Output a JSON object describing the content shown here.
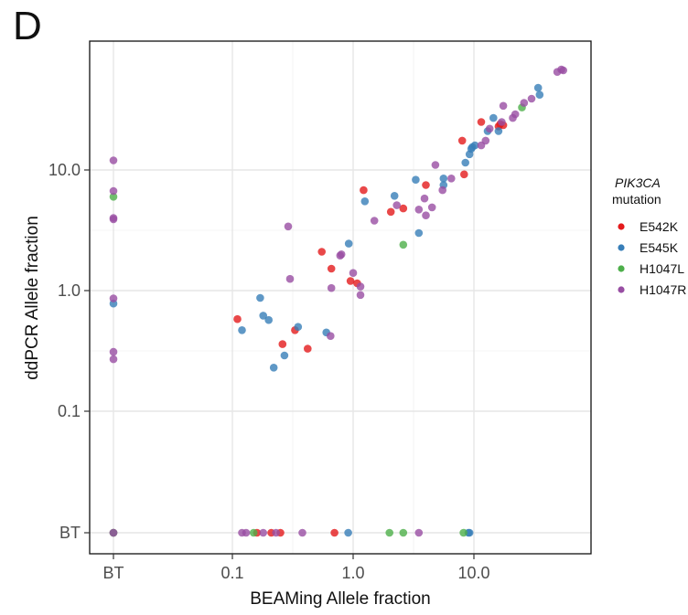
{
  "panel_label": "D",
  "chart_data": {
    "type": "scatter",
    "xlabel": "BEAMing Allele fraction",
    "ylabel": "ddPCR Allele fraction",
    "scale": "log10",
    "below_threshold_label": "BT",
    "x_ticks": [
      "BT",
      "0.1",
      "1.0",
      "10.0"
    ],
    "y_ticks": [
      "BT",
      "0.1",
      "1.0",
      "10.0"
    ],
    "xlim": [
      0.01,
      70
    ],
    "ylim": [
      0.01,
      90
    ],
    "grid": true,
    "legend": {
      "title_italic": "PIK3CA",
      "title": "mutation",
      "position": "right"
    },
    "series": [
      {
        "name": "E542K",
        "color": "#e41a1c",
        "points": [
          [
            "BT",
            "BT"
          ],
          [
            0.16,
            "BT"
          ],
          [
            0.21,
            "BT"
          ],
          [
            0.25,
            "BT"
          ],
          [
            0.7,
            "BT"
          ],
          [
            0.11,
            0.58
          ],
          [
            0.26,
            0.36
          ],
          [
            0.33,
            0.47
          ],
          [
            0.42,
            0.33
          ],
          [
            0.55,
            2.1
          ],
          [
            0.66,
            1.52
          ],
          [
            0.95,
            1.2
          ],
          [
            1.08,
            1.15
          ],
          [
            1.22,
            6.8
          ],
          [
            2.05,
            4.5
          ],
          [
            2.6,
            4.8
          ],
          [
            4.0,
            7.5
          ],
          [
            8.0,
            17.5
          ],
          [
            8.3,
            9.2
          ],
          [
            11.5,
            25.0
          ],
          [
            16.0,
            23.0
          ],
          [
            16.5,
            24.0
          ],
          [
            17.5,
            23.5
          ]
        ]
      },
      {
        "name": "E545K",
        "color": "#377eb8",
        "points": [
          [
            "BT",
            0.78
          ],
          [
            "BT",
            "BT"
          ],
          [
            0.91,
            "BT"
          ],
          [
            9.0,
            "BT"
          ],
          [
            9.2,
            "BT"
          ],
          [
            0.12,
            0.47
          ],
          [
            0.17,
            0.87
          ],
          [
            0.18,
            0.62
          ],
          [
            0.2,
            0.57
          ],
          [
            0.22,
            0.23
          ],
          [
            0.27,
            0.29
          ],
          [
            0.35,
            0.5
          ],
          [
            0.6,
            0.45
          ],
          [
            0.92,
            2.45
          ],
          [
            1.25,
            5.5
          ],
          [
            2.2,
            6.1
          ],
          [
            3.3,
            8.3
          ],
          [
            3.5,
            3.0
          ],
          [
            5.6,
            8.5
          ],
          [
            5.6,
            7.5
          ],
          [
            8.5,
            11.5
          ],
          [
            9.2,
            13.5
          ],
          [
            9.5,
            15.0
          ],
          [
            9.7,
            15.5
          ],
          [
            10.2,
            16.0
          ],
          [
            13.0,
            21.0
          ],
          [
            14.5,
            27.0
          ],
          [
            16.0,
            21.0
          ],
          [
            34.0,
            48.0
          ],
          [
            35.0,
            42.0
          ]
        ]
      },
      {
        "name": "H1047L",
        "color": "#4daf4a",
        "points": [
          [
            "BT",
            6.0
          ],
          [
            "BT",
            "BT"
          ],
          [
            0.15,
            "BT"
          ],
          [
            2.0,
            "BT"
          ],
          [
            2.6,
            "BT"
          ],
          [
            8.2,
            "BT"
          ],
          [
            2.6,
            2.4
          ],
          [
            25.0,
            33.0
          ]
        ]
      },
      {
        "name": "H1047R",
        "color": "#984ea3",
        "points": [
          [
            "BT",
            12.0
          ],
          [
            "BT",
            6.7
          ],
          [
            "BT",
            4.0
          ],
          [
            "BT",
            3.9
          ],
          [
            "BT",
            0.86
          ],
          [
            "BT",
            0.31
          ],
          [
            "BT",
            0.27
          ],
          [
            "BT",
            "BT"
          ],
          [
            0.12,
            "BT"
          ],
          [
            0.13,
            "BT"
          ],
          [
            0.18,
            "BT"
          ],
          [
            0.23,
            "BT"
          ],
          [
            0.38,
            "BT"
          ],
          [
            3.5,
            "BT"
          ],
          [
            0.29,
            3.4
          ],
          [
            0.3,
            1.25
          ],
          [
            0.66,
            1.05
          ],
          [
            0.65,
            0.42
          ],
          [
            0.8,
            2.0
          ],
          [
            0.78,
            1.95
          ],
          [
            1.0,
            1.4
          ],
          [
            1.15,
            1.08
          ],
          [
            1.15,
            0.92
          ],
          [
            1.5,
            3.8
          ],
          [
            2.3,
            5.1
          ],
          [
            3.5,
            4.7
          ],
          [
            3.9,
            5.8
          ],
          [
            4.0,
            4.2
          ],
          [
            4.5,
            4.9
          ],
          [
            4.8,
            11.0
          ],
          [
            5.5,
            6.8
          ],
          [
            6.5,
            8.5
          ],
          [
            11.5,
            16.0
          ],
          [
            12.5,
            17.5
          ],
          [
            13.5,
            22.0
          ],
          [
            17.0,
            25.0
          ],
          [
            17.5,
            34.0
          ],
          [
            21.0,
            27.0
          ],
          [
            22.0,
            29.0
          ],
          [
            26.0,
            36.0
          ],
          [
            30.0,
            39.0
          ],
          [
            49.0,
            65.0
          ],
          [
            53.0,
            68.0
          ],
          [
            55.0,
            67.0
          ]
        ]
      }
    ]
  }
}
